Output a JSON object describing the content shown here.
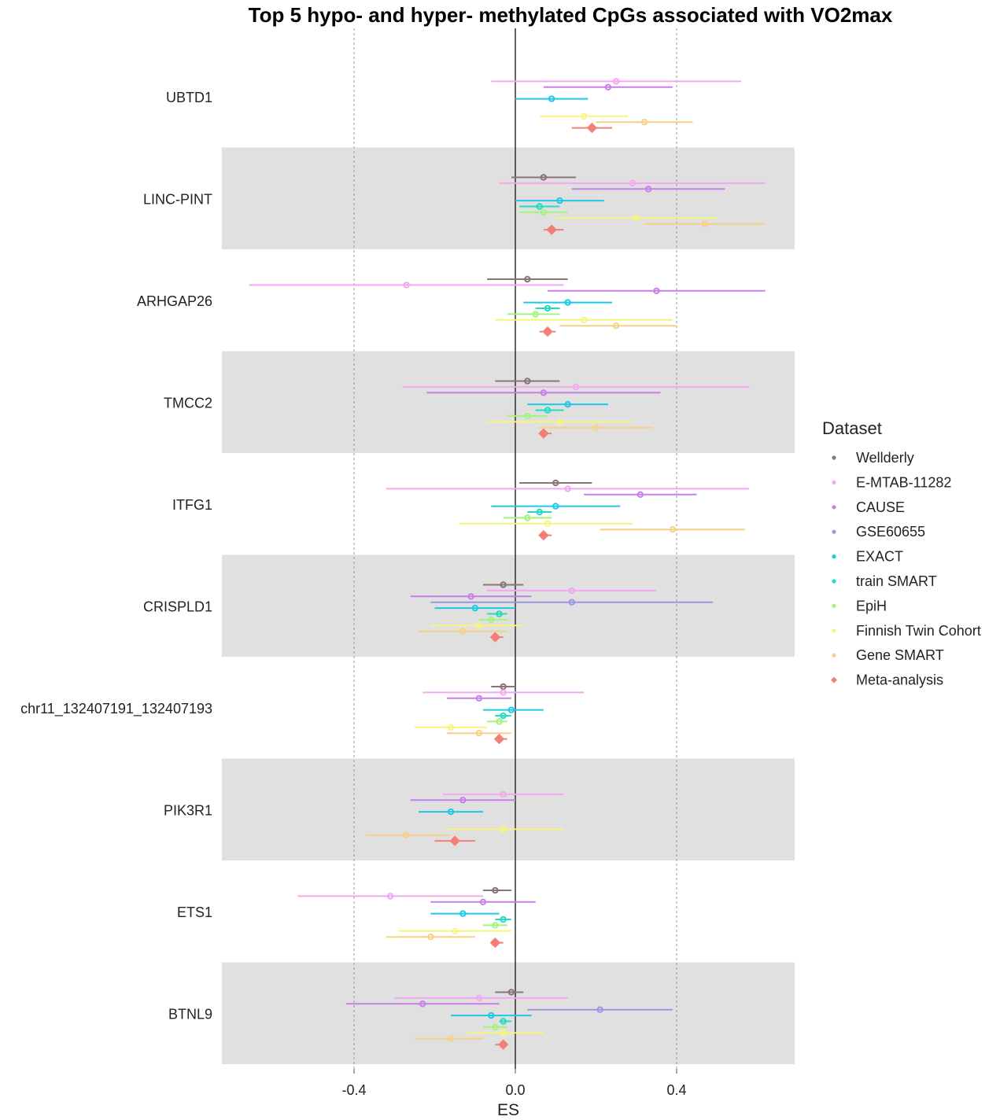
{
  "chart_data": {
    "type": "forest",
    "title": "Top 5 hypo- and hyper- methylated CpGs associated with VO2max",
    "xlabel": "ES",
    "ylabel": "",
    "xlim": [
      -0.7,
      0.7
    ],
    "x_ticks": [
      -0.4,
      0.0,
      0.4
    ],
    "x_tick_labels": [
      "-0.4",
      "0.0",
      "0.4"
    ],
    "grid": "dashed vertical lines at ±0.4, solid line at 0",
    "legend_title": "Dataset",
    "legend_position": "right",
    "categories": [
      "UBTD1",
      "LINC-PINT",
      "ARHGAP26",
      "TMCC2",
      "ITFG1",
      "CRISPLD1",
      "chr11_132407191_132407193",
      "PIK3R1",
      "ETS1",
      "BTNL9"
    ],
    "datasets": [
      {
        "name": "Wellderly",
        "color": "#8c7379"
      },
      {
        "name": "E-MTAB-11282",
        "color": "#f3a7f3"
      },
      {
        "name": "CAUSE",
        "color": "#c87fe8"
      },
      {
        "name": "GSE60655",
        "color": "#9d95e3"
      },
      {
        "name": "EXACT",
        "color": "#1ec8e6"
      },
      {
        "name": "train SMART",
        "color": "#22dcc0"
      },
      {
        "name": "EpiH",
        "color": "#a2f47c"
      },
      {
        "name": "Finnish Twin Cohort",
        "color": "#f6f57a"
      },
      {
        "name": "Gene SMART",
        "color": "#f8cf86"
      },
      {
        "name": "Meta-analysis",
        "color": "#f47f76"
      }
    ],
    "series": [
      {
        "gene": "UBTD1",
        "points": [
          {
            "dataset": "E-MTAB-11282",
            "es": 0.25,
            "lo": -0.06,
            "hi": 0.56
          },
          {
            "dataset": "CAUSE",
            "es": 0.23,
            "lo": 0.07,
            "hi": 0.39
          },
          {
            "dataset": "EXACT",
            "es": 0.09,
            "lo": 0.0,
            "hi": 0.18
          },
          {
            "dataset": "Finnish Twin Cohort",
            "es": 0.17,
            "lo": 0.06,
            "hi": 0.28
          },
          {
            "dataset": "Gene SMART",
            "es": 0.32,
            "lo": 0.2,
            "hi": 0.44
          },
          {
            "dataset": "Meta-analysis",
            "es": 0.19,
            "lo": 0.14,
            "hi": 0.24
          }
        ]
      },
      {
        "gene": "LINC-PINT",
        "points": [
          {
            "dataset": "Wellderly",
            "es": 0.07,
            "lo": -0.01,
            "hi": 0.15
          },
          {
            "dataset": "E-MTAB-11282",
            "es": 0.29,
            "lo": -0.04,
            "hi": 0.62
          },
          {
            "dataset": "CAUSE",
            "es": 0.33,
            "lo": 0.14,
            "hi": 0.52
          },
          {
            "dataset": "EXACT",
            "es": 0.11,
            "lo": 0.0,
            "hi": 0.22
          },
          {
            "dataset": "train SMART",
            "es": 0.06,
            "lo": 0.01,
            "hi": 0.11
          },
          {
            "dataset": "EpiH",
            "es": 0.07,
            "lo": 0.01,
            "hi": 0.13
          },
          {
            "dataset": "Finnish Twin Cohort",
            "es": 0.3,
            "lo": 0.1,
            "hi": 0.5
          },
          {
            "dataset": "Gene SMART",
            "es": 0.47,
            "lo": 0.32,
            "hi": 0.62
          },
          {
            "dataset": "Meta-analysis",
            "es": 0.09,
            "lo": 0.07,
            "hi": 0.12
          }
        ]
      },
      {
        "gene": "ARHGAP26",
        "points": [
          {
            "dataset": "Wellderly",
            "es": 0.03,
            "lo": -0.07,
            "hi": 0.13
          },
          {
            "dataset": "E-MTAB-11282",
            "es": -0.27,
            "lo": -0.66,
            "hi": 0.12
          },
          {
            "dataset": "CAUSE",
            "es": 0.35,
            "lo": 0.08,
            "hi": 0.62
          },
          {
            "dataset": "EXACT",
            "es": 0.13,
            "lo": 0.02,
            "hi": 0.24
          },
          {
            "dataset": "train SMART",
            "es": 0.08,
            "lo": 0.05,
            "hi": 0.11
          },
          {
            "dataset": "EpiH",
            "es": 0.05,
            "lo": -0.02,
            "hi": 0.11
          },
          {
            "dataset": "Finnish Twin Cohort",
            "es": 0.17,
            "lo": -0.05,
            "hi": 0.39
          },
          {
            "dataset": "Gene SMART",
            "es": 0.25,
            "lo": 0.11,
            "hi": 0.4
          },
          {
            "dataset": "Meta-analysis",
            "es": 0.08,
            "lo": 0.06,
            "hi": 0.1
          }
        ]
      },
      {
        "gene": "TMCC2",
        "points": [
          {
            "dataset": "Wellderly",
            "es": 0.03,
            "lo": -0.05,
            "hi": 0.11
          },
          {
            "dataset": "E-MTAB-11282",
            "es": 0.15,
            "lo": -0.28,
            "hi": 0.58
          },
          {
            "dataset": "CAUSE",
            "es": 0.07,
            "lo": -0.22,
            "hi": 0.36
          },
          {
            "dataset": "EXACT",
            "es": 0.13,
            "lo": 0.03,
            "hi": 0.23
          },
          {
            "dataset": "train SMART",
            "es": 0.08,
            "lo": 0.05,
            "hi": 0.12
          },
          {
            "dataset": "EpiH",
            "es": 0.03,
            "lo": -0.02,
            "hi": 0.08
          },
          {
            "dataset": "Finnish Twin Cohort",
            "es": 0.11,
            "lo": -0.07,
            "hi": 0.29
          },
          {
            "dataset": "Gene SMART",
            "es": 0.2,
            "lo": 0.06,
            "hi": 0.34
          },
          {
            "dataset": "Meta-analysis",
            "es": 0.07,
            "lo": 0.06,
            "hi": 0.09
          }
        ]
      },
      {
        "gene": "ITFG1",
        "points": [
          {
            "dataset": "Wellderly",
            "es": 0.1,
            "lo": 0.01,
            "hi": 0.19
          },
          {
            "dataset": "E-MTAB-11282",
            "es": 0.13,
            "lo": -0.32,
            "hi": 0.58
          },
          {
            "dataset": "CAUSE",
            "es": 0.31,
            "lo": 0.17,
            "hi": 0.45
          },
          {
            "dataset": "EXACT",
            "es": 0.1,
            "lo": -0.06,
            "hi": 0.26
          },
          {
            "dataset": "train SMART",
            "es": 0.06,
            "lo": 0.03,
            "hi": 0.09
          },
          {
            "dataset": "EpiH",
            "es": 0.03,
            "lo": -0.03,
            "hi": 0.09
          },
          {
            "dataset": "Finnish Twin Cohort",
            "es": 0.08,
            "lo": -0.14,
            "hi": 0.29
          },
          {
            "dataset": "Gene SMART",
            "es": 0.39,
            "lo": 0.21,
            "hi": 0.57
          },
          {
            "dataset": "Meta-analysis",
            "es": 0.07,
            "lo": 0.06,
            "hi": 0.09
          }
        ]
      },
      {
        "gene": "CRISPLD1",
        "points": [
          {
            "dataset": "Wellderly",
            "es": -0.03,
            "lo": -0.08,
            "hi": 0.02
          },
          {
            "dataset": "E-MTAB-11282",
            "es": 0.14,
            "lo": -0.07,
            "hi": 0.35
          },
          {
            "dataset": "CAUSE",
            "es": -0.11,
            "lo": -0.26,
            "hi": 0.04
          },
          {
            "dataset": "GSE60655",
            "es": 0.14,
            "lo": -0.21,
            "hi": 0.49
          },
          {
            "dataset": "EXACT",
            "es": -0.1,
            "lo": -0.2,
            "hi": 0.0
          },
          {
            "dataset": "train SMART",
            "es": -0.04,
            "lo": -0.07,
            "hi": -0.02
          },
          {
            "dataset": "EpiH",
            "es": -0.06,
            "lo": -0.09,
            "hi": -0.02
          },
          {
            "dataset": "Finnish Twin Cohort",
            "es": -0.09,
            "lo": -0.21,
            "hi": 0.02
          },
          {
            "dataset": "Gene SMART",
            "es": -0.13,
            "lo": -0.24,
            "hi": -0.02
          },
          {
            "dataset": "Meta-analysis",
            "es": -0.05,
            "lo": -0.06,
            "hi": -0.03
          }
        ]
      },
      {
        "gene": "chr11_132407191_132407193",
        "points": [
          {
            "dataset": "Wellderly",
            "es": -0.03,
            "lo": -0.06,
            "hi": 0.0
          },
          {
            "dataset": "E-MTAB-11282",
            "es": -0.03,
            "lo": -0.23,
            "hi": 0.17
          },
          {
            "dataset": "CAUSE",
            "es": -0.09,
            "lo": -0.17,
            "hi": -0.01
          },
          {
            "dataset": "EXACT",
            "es": -0.01,
            "lo": -0.08,
            "hi": 0.07
          },
          {
            "dataset": "train SMART",
            "es": -0.03,
            "lo": -0.05,
            "hi": -0.01
          },
          {
            "dataset": "EpiH",
            "es": -0.04,
            "lo": -0.07,
            "hi": -0.02
          },
          {
            "dataset": "Finnish Twin Cohort",
            "es": -0.16,
            "lo": -0.25,
            "hi": -0.07
          },
          {
            "dataset": "Gene SMART",
            "es": -0.09,
            "lo": -0.17,
            "hi": -0.01
          },
          {
            "dataset": "Meta-analysis",
            "es": -0.04,
            "lo": -0.05,
            "hi": -0.02
          }
        ]
      },
      {
        "gene": "PIK3R1",
        "points": [
          {
            "dataset": "E-MTAB-11282",
            "es": -0.03,
            "lo": -0.18,
            "hi": 0.12
          },
          {
            "dataset": "CAUSE",
            "es": -0.13,
            "lo": -0.26,
            "hi": 0.0
          },
          {
            "dataset": "EXACT",
            "es": -0.16,
            "lo": -0.24,
            "hi": -0.08
          },
          {
            "dataset": "Finnish Twin Cohort",
            "es": -0.03,
            "lo": -0.17,
            "hi": 0.12
          },
          {
            "dataset": "Gene SMART",
            "es": -0.27,
            "lo": -0.37,
            "hi": -0.16
          },
          {
            "dataset": "Meta-analysis",
            "es": -0.15,
            "lo": -0.2,
            "hi": -0.1
          }
        ]
      },
      {
        "gene": "ETS1",
        "points": [
          {
            "dataset": "Wellderly",
            "es": -0.05,
            "lo": -0.08,
            "hi": -0.01
          },
          {
            "dataset": "E-MTAB-11282",
            "es": -0.31,
            "lo": -0.54,
            "hi": -0.08
          },
          {
            "dataset": "CAUSE",
            "es": -0.08,
            "lo": -0.21,
            "hi": 0.05
          },
          {
            "dataset": "EXACT",
            "es": -0.13,
            "lo": -0.21,
            "hi": -0.04
          },
          {
            "dataset": "train SMART",
            "es": -0.03,
            "lo": -0.05,
            "hi": -0.01
          },
          {
            "dataset": "EpiH",
            "es": -0.05,
            "lo": -0.08,
            "hi": -0.02
          },
          {
            "dataset": "Finnish Twin Cohort",
            "es": -0.15,
            "lo": -0.29,
            "hi": -0.01
          },
          {
            "dataset": "Gene SMART",
            "es": -0.21,
            "lo": -0.32,
            "hi": -0.1
          },
          {
            "dataset": "Meta-analysis",
            "es": -0.05,
            "lo": -0.06,
            "hi": -0.03
          }
        ]
      },
      {
        "gene": "BTNL9",
        "points": [
          {
            "dataset": "Wellderly",
            "es": -0.01,
            "lo": -0.05,
            "hi": 0.02
          },
          {
            "dataset": "E-MTAB-11282",
            "es": -0.09,
            "lo": -0.3,
            "hi": 0.13
          },
          {
            "dataset": "CAUSE",
            "es": -0.23,
            "lo": -0.42,
            "hi": -0.04
          },
          {
            "dataset": "GSE60655",
            "es": 0.21,
            "lo": 0.03,
            "hi": 0.39
          },
          {
            "dataset": "EXACT",
            "es": -0.06,
            "lo": -0.16,
            "hi": 0.04
          },
          {
            "dataset": "train SMART",
            "es": -0.03,
            "lo": -0.04,
            "hi": -0.01
          },
          {
            "dataset": "EpiH",
            "es": -0.05,
            "lo": -0.08,
            "hi": -0.02
          },
          {
            "dataset": "Finnish Twin Cohort",
            "es": -0.03,
            "lo": -0.12,
            "hi": 0.07
          },
          {
            "dataset": "Gene SMART",
            "es": -0.16,
            "lo": -0.25,
            "hi": -0.08
          },
          {
            "dataset": "Meta-analysis",
            "es": -0.03,
            "lo": -0.05,
            "hi": -0.02
          }
        ]
      }
    ]
  }
}
